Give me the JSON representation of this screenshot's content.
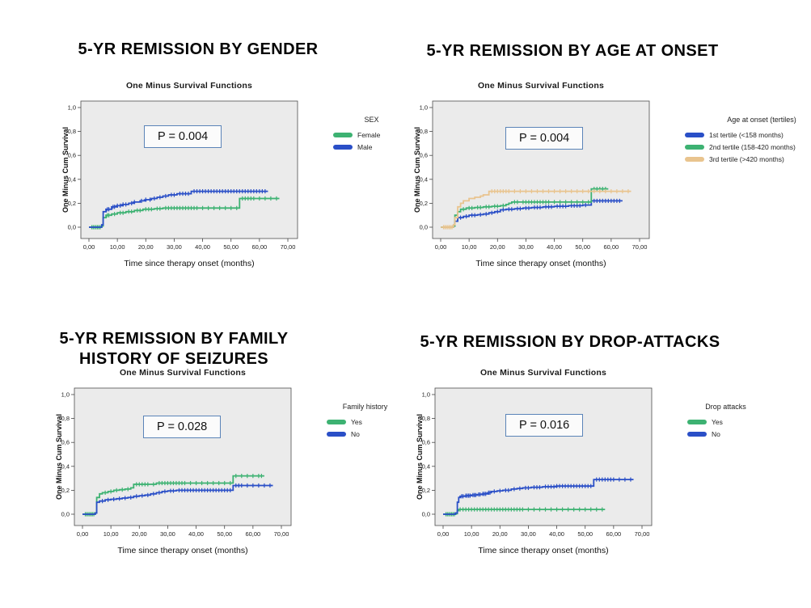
{
  "shared": {
    "chart_title": "One Minus Survival Functions",
    "x_label": "Time since therapy onset (months)",
    "y_label": "One Minus Cum Survival",
    "x_ticks": [
      "0,00",
      "10,00",
      "20,00",
      "30,00",
      "40,00",
      "50,00",
      "60,00",
      "70,00"
    ],
    "y_ticks": [
      "0,0",
      "0,2",
      "0,4",
      "0,6",
      "0,8",
      "1,0"
    ],
    "xlim": [
      0,
      70
    ],
    "ylim": [
      0,
      1
    ],
    "plot_bg": "#ebebeb",
    "frame_color": "#4d4d4d",
    "pbox_border": "#5b84b8"
  },
  "colors": {
    "green": "#3db272",
    "blue": "#2a4fc7",
    "tan": "#e9c48e"
  },
  "chart_data": [
    {
      "type": "line",
      "subtype": "step-survival",
      "heading": "5-YR REMISSION BY GENDER",
      "title": "One Minus Survival Functions",
      "annotation": "P = 0.004",
      "xlabel": "Time since therapy onset (months)",
      "ylabel": "One Minus Cum Survival",
      "legend_title": "SEX",
      "legend_position": "right",
      "series": [
        {
          "name": "Female",
          "color": "#3db272",
          "steps": [
            [
              0,
              0
            ],
            [
              4.5,
              0.01
            ],
            [
              5,
              0.08
            ],
            [
              6,
              0.1
            ],
            [
              8,
              0.11
            ],
            [
              10,
              0.12
            ],
            [
              13,
              0.13
            ],
            [
              16,
              0.14
            ],
            [
              19,
              0.15
            ],
            [
              23,
              0.155
            ],
            [
              26,
              0.16
            ],
            [
              53,
              0.16
            ],
            [
              53,
              0.24
            ],
            [
              67,
              0.24
            ]
          ],
          "censor_x": [
            1,
            1.5,
            2,
            2.5,
            3,
            3.5,
            4,
            6.5,
            7,
            9,
            11,
            12,
            14,
            15,
            17,
            18,
            20,
            21,
            22,
            24,
            25,
            27,
            28,
            29,
            30,
            31,
            32,
            33,
            34,
            35,
            36,
            37,
            38,
            40,
            42,
            44,
            46,
            48,
            50,
            52,
            54,
            55,
            56,
            57,
            58,
            60,
            62,
            64,
            66
          ]
        },
        {
          "name": "Male",
          "color": "#2a4fc7",
          "steps": [
            [
              0,
              0
            ],
            [
              4.5,
              0.02
            ],
            [
              5,
              0.13
            ],
            [
              6,
              0.15
            ],
            [
              8,
              0.17
            ],
            [
              10,
              0.18
            ],
            [
              12,
              0.19
            ],
            [
              14,
              0.2
            ],
            [
              16,
              0.21
            ],
            [
              18,
              0.22
            ],
            [
              20,
              0.23
            ],
            [
              22,
              0.24
            ],
            [
              24,
              0.25
            ],
            [
              26,
              0.26
            ],
            [
              28,
              0.27
            ],
            [
              31,
              0.28
            ],
            [
              36,
              0.3
            ],
            [
              63,
              0.3
            ]
          ],
          "censor_x": [
            6.5,
            7,
            8.5,
            9,
            10,
            11,
            12,
            13,
            15,
            16,
            18.5,
            20,
            21.5,
            23,
            25,
            27,
            29,
            30,
            32,
            33,
            34,
            35,
            37,
            38,
            39,
            40,
            41,
            42,
            43,
            44,
            45,
            46,
            47,
            48,
            49,
            50,
            51,
            52,
            53,
            54,
            55,
            56,
            57,
            58,
            59,
            60,
            61,
            62
          ]
        }
      ]
    },
    {
      "type": "line",
      "subtype": "step-survival",
      "heading": "5-YR REMISSION BY AGE AT ONSET",
      "title": "One Minus Survival Functions",
      "annotation": "P = 0.004",
      "xlabel": "Time since therapy onset (months)",
      "ylabel": "One Minus Cum Survival",
      "legend_title": "Age at onset (tertiles)",
      "legend_position": "right",
      "series": [
        {
          "name": "1st tertile (<158 months)",
          "color": "#2a4fc7",
          "steps": [
            [
              0,
              0
            ],
            [
              4.5,
              0.01
            ],
            [
              5,
              0.05
            ],
            [
              6,
              0.08
            ],
            [
              8,
              0.09
            ],
            [
              10,
              0.1
            ],
            [
              13,
              0.105
            ],
            [
              15,
              0.11
            ],
            [
              17,
              0.12
            ],
            [
              19,
              0.13
            ],
            [
              21,
              0.145
            ],
            [
              23,
              0.15
            ],
            [
              26,
              0.155
            ],
            [
              29,
              0.16
            ],
            [
              32,
              0.165
            ],
            [
              36,
              0.17
            ],
            [
              40,
              0.175
            ],
            [
              45,
              0.18
            ],
            [
              50,
              0.185
            ],
            [
              53,
              0.22
            ],
            [
              64,
              0.22
            ]
          ],
          "censor_x": [
            7,
            9,
            11,
            12,
            14,
            16,
            18,
            20,
            22,
            24,
            25,
            27,
            28,
            30,
            31,
            33,
            34,
            35,
            37,
            38,
            39,
            41,
            42,
            43,
            44,
            46,
            47,
            48,
            49,
            51,
            54,
            55,
            56,
            57,
            58,
            59,
            60,
            61,
            62,
            63
          ]
        },
        {
          "name": "2nd tertile (158-420 months)",
          "color": "#3db272",
          "steps": [
            [
              0,
              0
            ],
            [
              4.5,
              0.01
            ],
            [
              5,
              0.1
            ],
            [
              6,
              0.13
            ],
            [
              7,
              0.15
            ],
            [
              9,
              0.16
            ],
            [
              12,
              0.165
            ],
            [
              15,
              0.17
            ],
            [
              18,
              0.175
            ],
            [
              21,
              0.18
            ],
            [
              23,
              0.19
            ],
            [
              24,
              0.2
            ],
            [
              25,
              0.21
            ],
            [
              28,
              0.21
            ],
            [
              53,
              0.21
            ],
            [
              53,
              0.32
            ],
            [
              59,
              0.32
            ]
          ],
          "censor_x": [
            8,
            10,
            11,
            13,
            14,
            16,
            17,
            19,
            20,
            22,
            26,
            27,
            29,
            30,
            31,
            32,
            33,
            34,
            35,
            36,
            37,
            38,
            40,
            42,
            44,
            46,
            48,
            50,
            52,
            54,
            55,
            56,
            57,
            58
          ]
        },
        {
          "name": "3rd tertile (>420 months)",
          "color": "#e9c48e",
          "steps": [
            [
              0,
              0
            ],
            [
              4.5,
              0.02
            ],
            [
              5,
              0.08
            ],
            [
              6,
              0.17
            ],
            [
              7,
              0.2
            ],
            [
              8,
              0.22
            ],
            [
              10,
              0.24
            ],
            [
              12,
              0.25
            ],
            [
              14,
              0.26
            ],
            [
              15,
              0.27
            ],
            [
              17,
              0.3
            ],
            [
              67,
              0.3
            ]
          ],
          "censor_x": [
            1,
            1.5,
            2,
            2.5,
            3,
            3.5,
            4,
            18,
            19,
            20,
            21,
            22,
            23,
            24,
            26,
            28,
            30,
            32,
            34,
            36,
            38,
            40,
            42,
            44,
            46,
            48,
            50,
            52,
            54,
            56,
            58,
            60,
            62,
            64,
            66
          ]
        }
      ]
    },
    {
      "type": "line",
      "subtype": "step-survival",
      "heading": "5-YR REMISSION BY FAMILY HISTORY OF SEIZURES",
      "title": "One Minus Survival Functions",
      "annotation": "P = 0.028",
      "xlabel": "Time since therapy onset (months)",
      "ylabel": "One Minus Cum Survival",
      "legend_title": "Family history",
      "legend_position": "right",
      "series": [
        {
          "name": "Yes",
          "color": "#3db272",
          "steps": [
            [
              0,
              0
            ],
            [
              4.5,
              0.01
            ],
            [
              5,
              0.14
            ],
            [
              6,
              0.17
            ],
            [
              7,
              0.18
            ],
            [
              9,
              0.19
            ],
            [
              11,
              0.2
            ],
            [
              13,
              0.205
            ],
            [
              15,
              0.21
            ],
            [
              17,
              0.22
            ],
            [
              18,
              0.25
            ],
            [
              24,
              0.25
            ],
            [
              26,
              0.26
            ],
            [
              53,
              0.26
            ],
            [
              53,
              0.32
            ],
            [
              64,
              0.32
            ]
          ],
          "censor_x": [
            1,
            1.5,
            2,
            2.5,
            3,
            3.5,
            4,
            8,
            10,
            12,
            14,
            16,
            19,
            20,
            21,
            22,
            23,
            25,
            27,
            28,
            29,
            30,
            31,
            32,
            33,
            34,
            35,
            36,
            38,
            40,
            42,
            44,
            46,
            48,
            50,
            52,
            54,
            56,
            58,
            60,
            62,
            63
          ]
        },
        {
          "name": "No",
          "color": "#2a4fc7",
          "steps": [
            [
              0,
              0
            ],
            [
              4.5,
              0.01
            ],
            [
              5,
              0.1
            ],
            [
              6,
              0.11
            ],
            [
              8,
              0.12
            ],
            [
              10,
              0.125
            ],
            [
              12,
              0.13
            ],
            [
              14,
              0.135
            ],
            [
              16,
              0.14
            ],
            [
              18,
              0.15
            ],
            [
              20,
              0.155
            ],
            [
              22,
              0.16
            ],
            [
              24,
              0.17
            ],
            [
              26,
              0.18
            ],
            [
              28,
              0.19
            ],
            [
              30,
              0.195
            ],
            [
              33,
              0.2
            ],
            [
              53,
              0.2
            ],
            [
              53,
              0.24
            ],
            [
              67,
              0.24
            ]
          ],
          "censor_x": [
            7,
            9,
            11,
            13,
            15,
            17,
            19,
            21,
            23,
            25,
            27,
            29,
            31,
            32,
            34,
            35,
            36,
            37,
            38,
            39,
            40,
            41,
            42,
            43,
            44,
            45,
            46,
            47,
            48,
            49,
            50,
            51,
            52,
            54,
            55,
            56,
            58,
            60,
            62,
            64,
            66
          ]
        }
      ]
    },
    {
      "type": "line",
      "subtype": "step-survival",
      "heading": "5-YR REMISSION BY DROP-ATTACKS",
      "title": "One Minus Survival Functions",
      "annotation": "P = 0.016",
      "xlabel": "Time since therapy onset (months)",
      "ylabel": "One Minus Cum Survival",
      "legend_title": "Drop attacks",
      "legend_position": "right",
      "series": [
        {
          "name": "Yes",
          "color": "#3db272",
          "steps": [
            [
              0,
              0
            ],
            [
              4.5,
              0.005
            ],
            [
              5,
              0.03
            ],
            [
              5.5,
              0.04
            ],
            [
              57,
              0.04
            ]
          ],
          "censor_x": [
            1,
            1.5,
            2,
            2.5,
            3,
            3.5,
            4,
            6,
            7,
            8,
            9,
            10,
            11,
            12,
            13,
            14,
            15,
            16,
            17,
            18,
            19,
            20,
            21,
            22,
            23,
            24,
            25,
            26,
            27,
            28,
            30,
            32,
            34,
            36,
            38,
            40,
            42,
            44,
            46,
            48,
            50,
            52,
            54,
            56
          ]
        },
        {
          "name": "No",
          "color": "#2a4fc7",
          "steps": [
            [
              0,
              0
            ],
            [
              4.3,
              0.01
            ],
            [
              5,
              0.1
            ],
            [
              5.5,
              0.14
            ],
            [
              6,
              0.15
            ],
            [
              8,
              0.155
            ],
            [
              10,
              0.16
            ],
            [
              12,
              0.165
            ],
            [
              14,
              0.17
            ],
            [
              16,
              0.18
            ],
            [
              17,
              0.19
            ],
            [
              19,
              0.195
            ],
            [
              21,
              0.2
            ],
            [
              24,
              0.21
            ],
            [
              26,
              0.215
            ],
            [
              28,
              0.22
            ],
            [
              31,
              0.225
            ],
            [
              35,
              0.23
            ],
            [
              40,
              0.235
            ],
            [
              53,
              0.235
            ],
            [
              53,
              0.29
            ],
            [
              67,
              0.29
            ]
          ],
          "censor_x": [
            6.5,
            7,
            8,
            8.5,
            9,
            9.5,
            10.5,
            11,
            11.5,
            12.5,
            13,
            14,
            14.5,
            15,
            16,
            16.5,
            18,
            20,
            22,
            23,
            25,
            27,
            29,
            30,
            32,
            33,
            34,
            36,
            37,
            38,
            39,
            40,
            41,
            42,
            43,
            44,
            45,
            46,
            47,
            48,
            49,
            50,
            51,
            52,
            54,
            55,
            56,
            57,
            58,
            59,
            60,
            62,
            64,
            66
          ]
        }
      ]
    }
  ]
}
